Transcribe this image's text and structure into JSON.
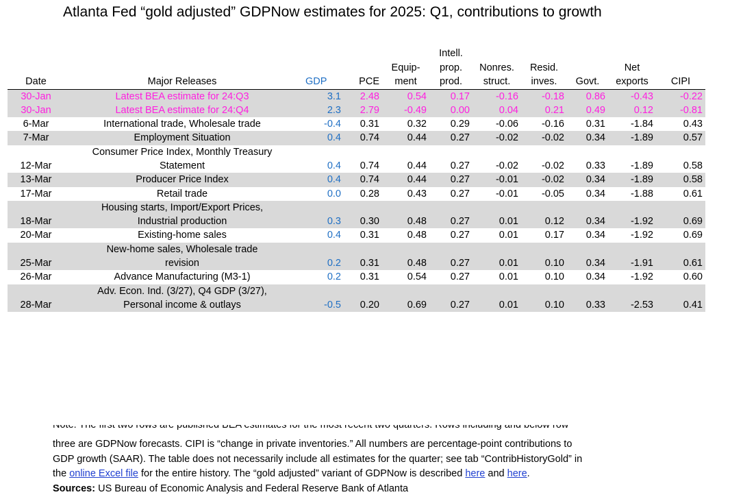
{
  "title": "Atlanta Fed “gold adjusted” GDPNow estimates for 2025: Q1, contributions to growth",
  "headers": {
    "date": "Date",
    "releases": "Major Releases",
    "gdp": "GDP",
    "pce": "PCE",
    "equip_1": "Equip-",
    "equip_2": "ment",
    "intell_1": "Intell.",
    "intell_2": "prop.",
    "intell_3": "prod.",
    "nonres_1": "Nonres.",
    "nonres_2": "struct.",
    "resid_1": "Resid.",
    "resid_2": "inves.",
    "govt": "Govt.",
    "net_1": "Net",
    "net_2": "exports",
    "cipi": "CIPI"
  },
  "rows": [
    {
      "date": "30-Jan",
      "rel1": "Latest BEA estimate for 24:Q3",
      "rel2": "",
      "gdp": "3.1",
      "pce": "2.48",
      "equip": "0.54",
      "intell": "0.17",
      "nonres": "-0.16",
      "resid": "-0.18",
      "govt": "0.86",
      "net": "-0.43",
      "cipi": "-0.22"
    },
    {
      "date": "30-Jan",
      "rel1": "Latest BEA estimate for 24:Q4",
      "rel2": "",
      "gdp": "2.3",
      "pce": "2.79",
      "equip": "-0.49",
      "intell": "0.00",
      "nonres": "0.04",
      "resid": "0.21",
      "govt": "0.49",
      "net": "0.12",
      "cipi": "-0.81"
    },
    {
      "date": "6-Mar",
      "rel1": "International trade, Wholesale trade",
      "rel2": "",
      "gdp": "-0.4",
      "pce": "0.31",
      "equip": "0.32",
      "intell": "0.29",
      "nonres": "-0.06",
      "resid": "-0.16",
      "govt": "0.31",
      "net": "-1.84",
      "cipi": "0.43"
    },
    {
      "date": "7-Mar",
      "rel1": "Employment Situation",
      "rel2": "",
      "gdp": "0.4",
      "pce": "0.74",
      "equip": "0.44",
      "intell": "0.27",
      "nonres": "-0.02",
      "resid": "-0.02",
      "govt": "0.34",
      "net": "-1.89",
      "cipi": "0.57"
    },
    {
      "date": "12-Mar",
      "rel1": "Consumer Price Index, Monthly Treasury",
      "rel2": "Statement",
      "gdp": "0.4",
      "pce": "0.74",
      "equip": "0.44",
      "intell": "0.27",
      "nonres": "-0.02",
      "resid": "-0.02",
      "govt": "0.33",
      "net": "-1.89",
      "cipi": "0.58"
    },
    {
      "date": "13-Mar",
      "rel1": "Producer Price Index",
      "rel2": "",
      "gdp": "0.4",
      "pce": "0.74",
      "equip": "0.44",
      "intell": "0.27",
      "nonres": "-0.01",
      "resid": "-0.02",
      "govt": "0.34",
      "net": "-1.89",
      "cipi": "0.58"
    },
    {
      "date": "17-Mar",
      "rel1": "Retail trade",
      "rel2": "",
      "gdp": "0.0",
      "pce": "0.28",
      "equip": "0.43",
      "intell": "0.27",
      "nonres": "-0.01",
      "resid": "-0.05",
      "govt": "0.34",
      "net": "-1.88",
      "cipi": "0.61"
    },
    {
      "date": "18-Mar",
      "rel1": "Housing starts, Import/Export Prices,",
      "rel2": "Industrial production",
      "gdp": "0.3",
      "pce": "0.30",
      "equip": "0.48",
      "intell": "0.27",
      "nonres": "0.01",
      "resid": "0.12",
      "govt": "0.34",
      "net": "-1.92",
      "cipi": "0.69"
    },
    {
      "date": "20-Mar",
      "rel1": "Existing-home sales",
      "rel2": "",
      "gdp": "0.4",
      "pce": "0.31",
      "equip": "0.48",
      "intell": "0.27",
      "nonres": "0.01",
      "resid": "0.17",
      "govt": "0.34",
      "net": "-1.92",
      "cipi": "0.69"
    },
    {
      "date": "25-Mar",
      "rel1": "New-home sales, Wholesale trade",
      "rel2": "revision",
      "gdp": "0.2",
      "pce": "0.31",
      "equip": "0.48",
      "intell": "0.27",
      "nonres": "0.01",
      "resid": "0.10",
      "govt": "0.34",
      "net": "-1.91",
      "cipi": "0.61"
    },
    {
      "date": "26-Mar",
      "rel1": "Advance Manufacturing (M3-1)",
      "rel2": "",
      "gdp": "0.2",
      "pce": "0.31",
      "equip": "0.54",
      "intell": "0.27",
      "nonres": "0.01",
      "resid": "0.10",
      "govt": "0.34",
      "net": "-1.92",
      "cipi": "0.60"
    },
    {
      "date": "28-Mar",
      "rel1": "Adv. Econ. Ind. (3/27), Q4 GDP (3/27),",
      "rel2": "Personal income & outlays",
      "gdp": "-0.5",
      "pce": "0.20",
      "equip": "0.69",
      "intell": "0.27",
      "nonres": "0.01",
      "resid": "0.10",
      "govt": "0.33",
      "net": "-2.53",
      "cipi": "0.41"
    }
  ],
  "note": {
    "line1": "Note: The first two rows are published BEA estimates for the most recent two quarters. Rows including and below row",
    "line2": "three are GDPNow forecasts. CIPI is “change in private inventories.” All numbers are percentage-point contributions to",
    "line3": "GDP growth (SAAR). The table does not necessarily include all estimates for the quarter; see tab “ContribHistoryGold” in",
    "line4_pre": "the",
    "link_excel": "online Excel file",
    "line4_mid": "for the entire history. The “gold adjusted” variant of GDPNow is described",
    "link_here1": "here",
    "line4_and": "and",
    "link_here2": "here",
    "line4_end": ".",
    "sources_label": "Sources:",
    "sources_text": "US Bureau of Economic Analysis and Federal Reserve Bank of Atlanta"
  },
  "colors": {
    "bea_text": "#ff1fe0",
    "gdp_text": "#1f6fc4",
    "row_shade": "#d9d9d9",
    "link": "#1f3fd0"
  }
}
